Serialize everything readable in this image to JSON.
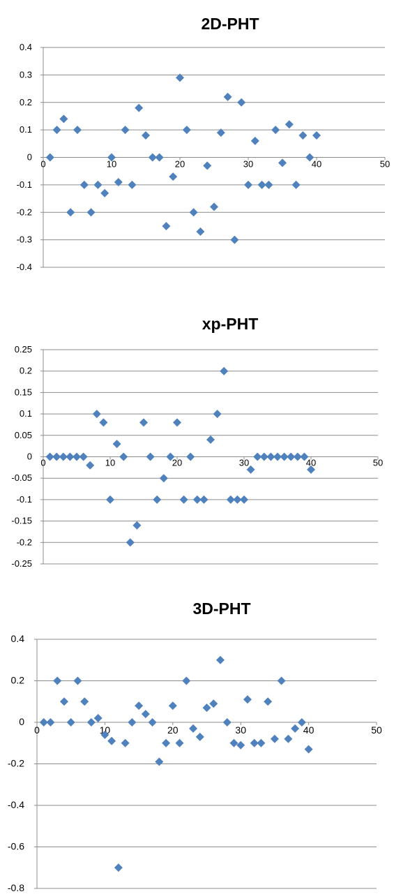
{
  "chart_data": [
    {
      "type": "scatter",
      "title": "2D-PHT",
      "xlim": [
        0,
        50
      ],
      "ylim": [
        -0.4,
        0.4
      ],
      "x_ticks": [
        "0",
        "10",
        "20",
        "30",
        "40",
        "50"
      ],
      "y_ticks": [
        "0.4",
        "0.3",
        "0.2",
        "0.1",
        "0",
        "-0.1",
        "-0.2",
        "-0.3",
        "-0.4"
      ],
      "grid": true,
      "marker_color": "#4F81BD",
      "points": [
        [
          1,
          0
        ],
        [
          2,
          0.1
        ],
        [
          3,
          0.14
        ],
        [
          4,
          -0.2
        ],
        [
          5,
          0.1
        ],
        [
          6,
          -0.1
        ],
        [
          7,
          -0.2
        ],
        [
          8,
          -0.1
        ],
        [
          9,
          -0.13
        ],
        [
          10,
          0
        ],
        [
          11,
          -0.09
        ],
        [
          12,
          0.1
        ],
        [
          13,
          -0.1
        ],
        [
          14,
          0.18
        ],
        [
          15,
          0.08
        ],
        [
          16,
          0
        ],
        [
          17,
          0
        ],
        [
          18,
          -0.25
        ],
        [
          19,
          -0.07
        ],
        [
          20,
          0.29
        ],
        [
          21,
          0.1
        ],
        [
          22,
          -0.2
        ],
        [
          23,
          -0.27
        ],
        [
          24,
          -0.03
        ],
        [
          25,
          -0.18
        ],
        [
          26,
          0.09
        ],
        [
          27,
          0.22
        ],
        [
          28,
          -0.3
        ],
        [
          29,
          0.2
        ],
        [
          30,
          -0.1
        ],
        [
          31,
          0.06
        ],
        [
          32,
          -0.1
        ],
        [
          33,
          -0.1
        ],
        [
          34,
          0.1
        ],
        [
          35,
          -0.02
        ],
        [
          36,
          0.12
        ],
        [
          37,
          -0.1
        ],
        [
          38,
          0.08
        ],
        [
          39,
          0
        ],
        [
          40,
          0.08
        ]
      ]
    },
    {
      "type": "scatter",
      "title": "xp-PHT",
      "xlim": [
        0,
        50
      ],
      "ylim": [
        -0.25,
        0.25
      ],
      "x_ticks": [
        "0",
        "10",
        "20",
        "30",
        "40",
        "50"
      ],
      "y_ticks": [
        "0.25",
        "0.2",
        "0.15",
        "0.1",
        "0.05",
        "0",
        "-0.05",
        "-0.1",
        "-0.15",
        "-0.2",
        "-0.25"
      ],
      "grid": true,
      "marker_color": "#4F81BD",
      "points": [
        [
          1,
          0
        ],
        [
          2,
          0
        ],
        [
          3,
          0
        ],
        [
          4,
          0
        ],
        [
          5,
          0
        ],
        [
          6,
          0
        ],
        [
          7,
          -0.02
        ],
        [
          8,
          0.1
        ],
        [
          9,
          0.08
        ],
        [
          10,
          -0.1
        ],
        [
          11,
          0.03
        ],
        [
          12,
          0
        ],
        [
          13,
          -0.2
        ],
        [
          14,
          -0.16
        ],
        [
          15,
          0.08
        ],
        [
          16,
          0
        ],
        [
          17,
          -0.1
        ],
        [
          18,
          -0.05
        ],
        [
          19,
          0
        ],
        [
          20,
          0.08
        ],
        [
          21,
          -0.1
        ],
        [
          22,
          0
        ],
        [
          23,
          -0.1
        ],
        [
          24,
          -0.1
        ],
        [
          25,
          0.04
        ],
        [
          26,
          0.1
        ],
        [
          27,
          0.2
        ],
        [
          28,
          -0.1
        ],
        [
          29,
          -0.1
        ],
        [
          30,
          -0.1
        ],
        [
          31,
          -0.03
        ],
        [
          32,
          0
        ],
        [
          33,
          0
        ],
        [
          34,
          0
        ],
        [
          35,
          0
        ],
        [
          36,
          0
        ],
        [
          37,
          0
        ],
        [
          38,
          0
        ],
        [
          39,
          0
        ],
        [
          40,
          -0.03
        ]
      ]
    },
    {
      "type": "scatter",
      "title": "3D-PHT",
      "xlim": [
        0,
        50
      ],
      "ylim": [
        -0.8,
        0.4
      ],
      "x_ticks": [
        "0",
        "10",
        "20",
        "30",
        "40",
        "50"
      ],
      "y_ticks": [
        "0.4",
        "0.2",
        "0",
        "-0.2",
        "-0.4",
        "-0.6",
        "-0.8"
      ],
      "grid": true,
      "marker_color": "#4F81BD",
      "points": [
        [
          1,
          0
        ],
        [
          2,
          0
        ],
        [
          3,
          0.2
        ],
        [
          4,
          0.1
        ],
        [
          5,
          0
        ],
        [
          6,
          0.2
        ],
        [
          7,
          0.1
        ],
        [
          8,
          0
        ],
        [
          9,
          0.02
        ],
        [
          10,
          -0.06
        ],
        [
          11,
          -0.09
        ],
        [
          12,
          -0.7
        ],
        [
          13,
          -0.1
        ],
        [
          14,
          0
        ],
        [
          15,
          0.08
        ],
        [
          16,
          0.04
        ],
        [
          17,
          0
        ],
        [
          18,
          -0.19
        ],
        [
          19,
          -0.1
        ],
        [
          20,
          0.08
        ],
        [
          21,
          -0.1
        ],
        [
          22,
          0.2
        ],
        [
          23,
          -0.03
        ],
        [
          24,
          -0.07
        ],
        [
          25,
          0.07
        ],
        [
          26,
          0.09
        ],
        [
          27,
          0.3
        ],
        [
          28,
          0
        ],
        [
          29,
          -0.1
        ],
        [
          30,
          -0.11
        ],
        [
          31,
          0.11
        ],
        [
          32,
          -0.1
        ],
        [
          33,
          -0.1
        ],
        [
          34,
          0.1
        ],
        [
          35,
          -0.08
        ],
        [
          36,
          0.2
        ],
        [
          37,
          -0.08
        ],
        [
          38,
          -0.03
        ],
        [
          39,
          0
        ],
        [
          40,
          -0.13
        ]
      ]
    }
  ]
}
